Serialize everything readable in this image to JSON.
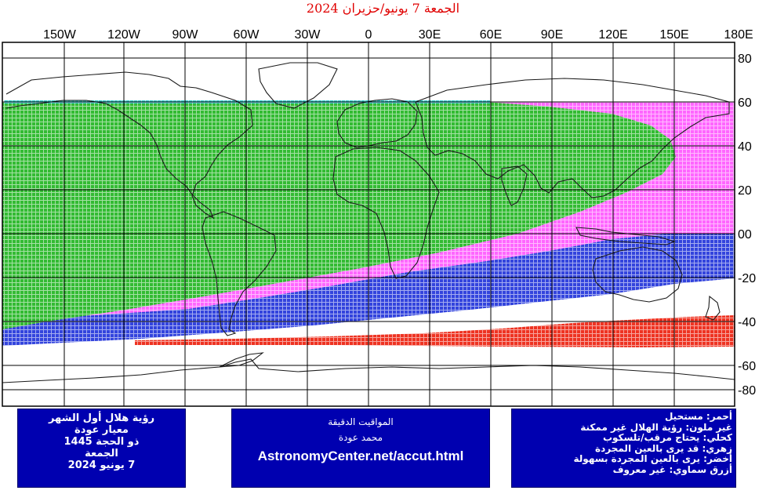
{
  "title": "الجمعة 7 يونيو/حزيران 2024",
  "lon_labels": [
    "150W",
    "120W",
    "90W",
    "60W",
    "30W",
    "0",
    "30E",
    "60E",
    "90E",
    "120E",
    "150E",
    "180E"
  ],
  "lat_labels": [
    "80",
    "60",
    "40",
    "20",
    "00",
    "-20",
    "-40",
    "-60",
    "-80"
  ],
  "colors": {
    "green": "#33bb33",
    "magenta": "#ff66ff",
    "blue": "#3344dd",
    "red": "#ee3322",
    "cyan": "#33cccc",
    "title": "#e00000",
    "panel": "#0000b0"
  },
  "legend_left": {
    "line1": "رؤية هلال أول الشهر",
    "line2": "معيار عودة",
    "line3": "ذو الحجة 1445",
    "line4": "الجمعة",
    "line5": "7 يونيو 2024"
  },
  "legend_mid": {
    "line1": "المواقيت الدقيقة",
    "line2": "محمد عودة",
    "url": "AstronomyCenter.net/accut.html"
  },
  "legend_right": {
    "line1": "أحمر: مستحيل",
    "line2": "غير ملون: رؤية الهلال غير ممكنة",
    "line3": "كحلي: يحتاج مرقب/تلسكوب",
    "line4": "زهري: قد يرى بالعين المجردة",
    "line5": "أخضر: يرى بالعين المجردة بسهولة",
    "line6": "أزرق سماوي: غير معروف"
  }
}
